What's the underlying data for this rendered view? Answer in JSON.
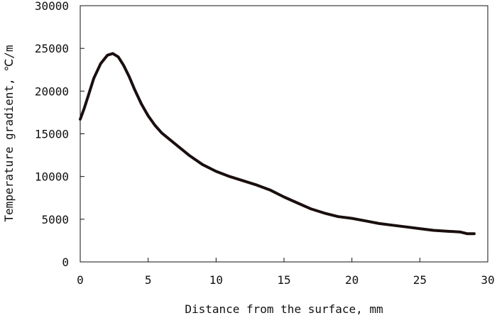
{
  "chart_data": {
    "type": "line",
    "title": "",
    "xlabel": "Distance from the surface, mm",
    "ylabel": "Temperature gradient, ℃/m",
    "xlim": [
      0,
      30
    ],
    "ylim": [
      0,
      30000
    ],
    "x_ticks": [
      0,
      5,
      10,
      15,
      20,
      25,
      30
    ],
    "y_ticks": [
      0,
      5000,
      10000,
      15000,
      20000,
      25000,
      30000
    ],
    "x_tick_labels": [
      "0",
      "5",
      "10",
      "15",
      "20",
      "25",
      "30"
    ],
    "y_tick_labels": [
      "0",
      "5000",
      "10000",
      "15000",
      "20000",
      "25000",
      "30000"
    ],
    "grid": false,
    "legend": "none",
    "series": [
      {
        "color": "#1a0e0e",
        "x": [
          0,
          0.3,
          0.6,
          1.0,
          1.5,
          2.0,
          2.4,
          2.8,
          3.2,
          3.6,
          4.0,
          4.5,
          5.0,
          5.5,
          6.0,
          7.0,
          8.0,
          9.0,
          10.0,
          11.0,
          12.0,
          13.0,
          14.0,
          15.0,
          16.0,
          17.0,
          18.0,
          19.0,
          20.0,
          21.0,
          22.0,
          23.0,
          24.0,
          25.0,
          26.0,
          27.0,
          28.0,
          28.5,
          29.0
        ],
        "y": [
          16700,
          18000,
          19500,
          21500,
          23200,
          24200,
          24400,
          24000,
          23000,
          21700,
          20200,
          18500,
          17100,
          16000,
          15100,
          13800,
          12500,
          11400,
          10600,
          10000,
          9500,
          9000,
          8400,
          7600,
          6900,
          6200,
          5700,
          5300,
          5100,
          4800,
          4500,
          4300,
          4100,
          3900,
          3700,
          3600,
          3500,
          3300,
          3300
        ]
      }
    ]
  }
}
